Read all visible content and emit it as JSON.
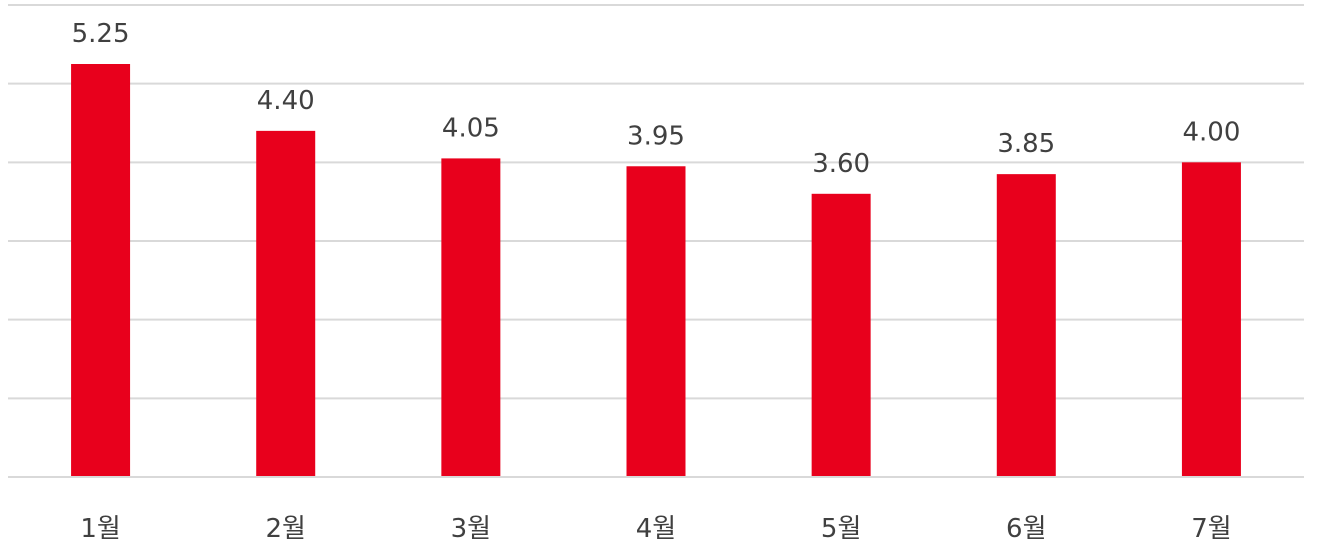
{
  "chart_data": {
    "type": "bar",
    "categories": [
      "1월",
      "2월",
      "3월",
      "4월",
      "5월",
      "6월",
      "7월"
    ],
    "values": [
      5.25,
      4.4,
      4.05,
      3.95,
      3.6,
      3.85,
      4.0
    ],
    "value_labels": [
      "5.25",
      "4.40",
      "4.05",
      "3.95",
      "3.60",
      "3.85",
      "4.00"
    ],
    "ylim": [
      0,
      6
    ],
    "grid": true,
    "bar_color": "#e8001c"
  }
}
